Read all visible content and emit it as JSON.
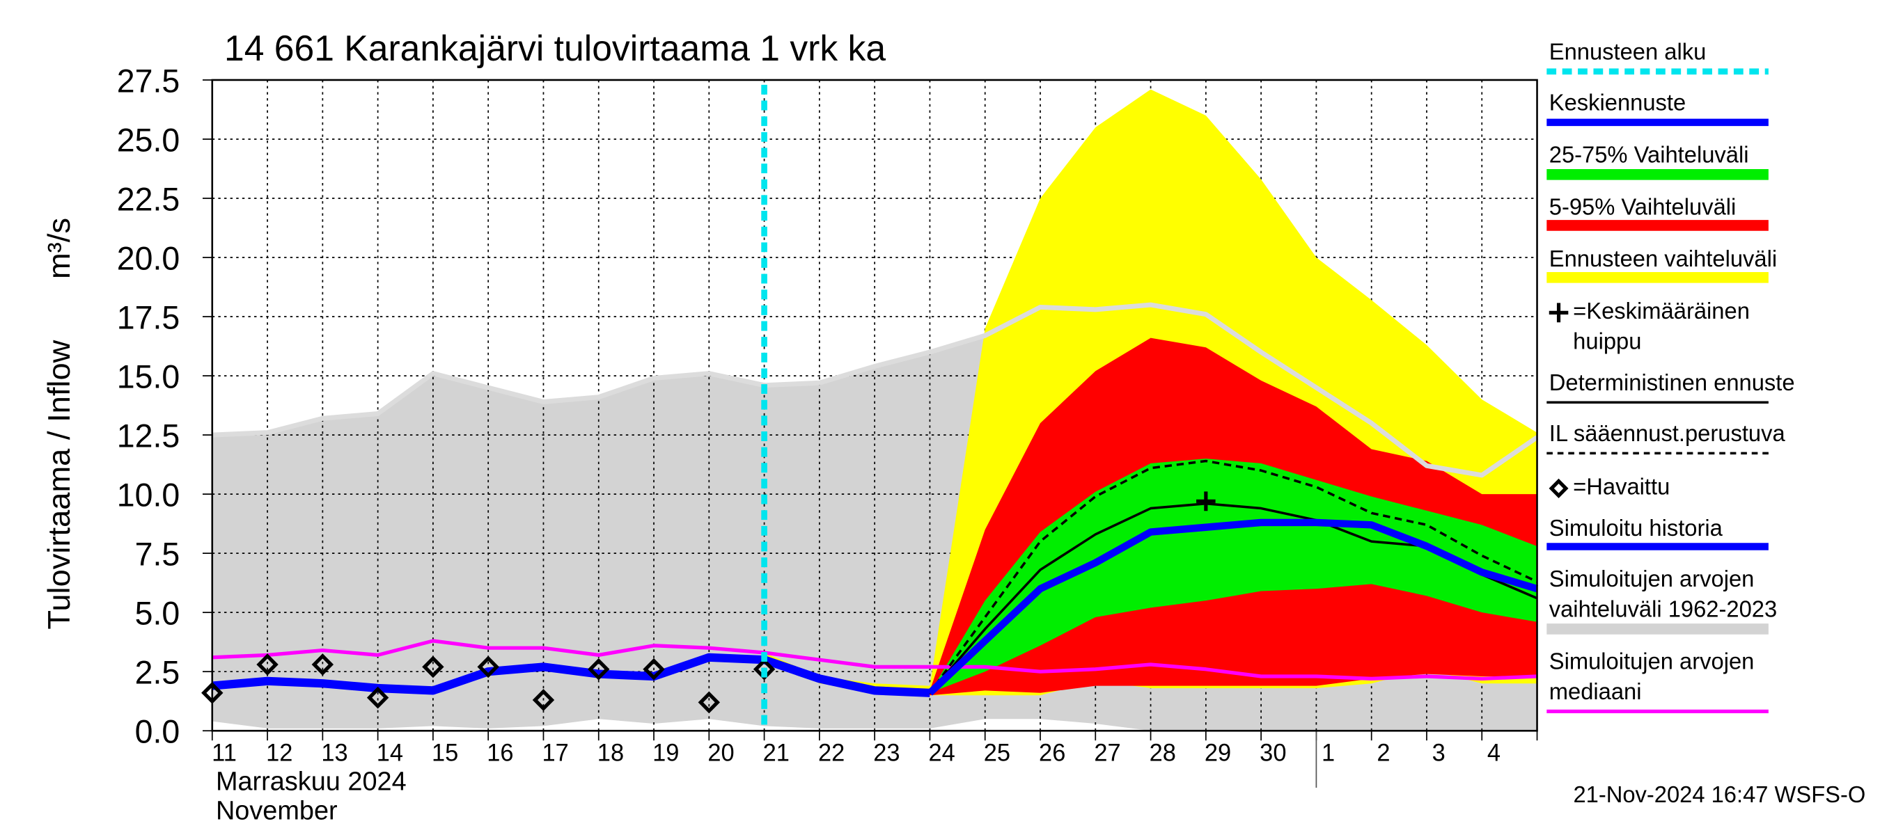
{
  "chart_data": {
    "type": "line",
    "title": "14 661 Karankajärvi tulovirtaama 1 vrk ka",
    "y_label": "Tulovirtaama / Inflow",
    "y_unit": "m³/s",
    "x_label": "Marraskuu 2024",
    "x_label2": "November",
    "footer": "21-Nov-2024 16:47 WSFS-O",
    "grid": true,
    "categories": [
      "11",
      "12",
      "13",
      "14",
      "15",
      "16",
      "17",
      "18",
      "19",
      "20",
      "21",
      "22",
      "23",
      "24",
      "25",
      "26",
      "27",
      "28",
      "29",
      "30",
      "1",
      "2",
      "3",
      "4",
      null
    ],
    "ylim": [
      0,
      27.5
    ],
    "yticks": [
      {
        "value": 0,
        "label": "0.0"
      },
      2.5,
      {
        "value": 5,
        "label": "5.0"
      },
      7.5,
      {
        "value": 10,
        "label": "10.0"
      },
      12.5,
      {
        "value": 15,
        "label": "15.0"
      },
      17.5,
      {
        "value": 20,
        "label": "20.0"
      },
      22.5,
      {
        "value": 25,
        "label": "25.0"
      },
      27.5
    ],
    "layers": [
      {
        "name": "Ennusteen alku",
        "kind": "vline",
        "color": "#00e5ee",
        "x": 10
      },
      {
        "name": "Keskiennuste",
        "kind": "line",
        "color": "#0000ff",
        "width": 6,
        "values": [
          null,
          null,
          null,
          null,
          null,
          null,
          null,
          null,
          null,
          null,
          null,
          null,
          null,
          1.6,
          3.8,
          6.0,
          7.1,
          8.4,
          8.6,
          8.8,
          8.8,
          8.7,
          7.8,
          6.7,
          6.0
        ]
      },
      {
        "name": "25-75% Vaihteluväli",
        "kind": "band",
        "color": "#00ee00",
        "low": [
          null,
          null,
          null,
          null,
          null,
          null,
          null,
          null,
          null,
          null,
          null,
          null,
          null,
          1.6,
          2.5,
          3.6,
          4.8,
          5.2,
          5.5,
          5.9,
          6.0,
          6.2,
          5.7,
          5.0,
          4.6
        ],
        "high": [
          null,
          null,
          null,
          null,
          null,
          null,
          null,
          null,
          null,
          null,
          null,
          null,
          null,
          1.6,
          5.5,
          8.4,
          10.1,
          11.3,
          11.5,
          11.3,
          10.6,
          9.9,
          9.3,
          8.7,
          7.8
        ]
      },
      {
        "name": "5-95% Vaihteluväli",
        "kind": "band",
        "color": "#ff0000",
        "low": [
          null,
          null,
          null,
          null,
          null,
          null,
          null,
          null,
          null,
          null,
          null,
          null,
          null,
          1.5,
          1.7,
          1.6,
          1.9,
          1.9,
          1.9,
          1.9,
          1.9,
          2.2,
          2.4,
          2.3,
          2.3
        ],
        "high": [
          null,
          null,
          null,
          null,
          null,
          null,
          null,
          null,
          null,
          null,
          null,
          null,
          null,
          1.7,
          8.5,
          13.0,
          15.2,
          16.6,
          16.2,
          14.8,
          13.7,
          11.9,
          11.4,
          10.0,
          10.0
        ]
      },
      {
        "name": "Ennusteen vaihteluväli",
        "kind": "band",
        "color": "#ffff00",
        "low": [
          null,
          null,
          null,
          null,
          null,
          null,
          null,
          null,
          null,
          null,
          3.2,
          2.0,
          1.7,
          1.5,
          1.5,
          1.5,
          2.1,
          1.8,
          1.8,
          1.8,
          1.8,
          2.0,
          2.6,
          2.0,
          2.0
        ],
        "high": [
          null,
          null,
          null,
          null,
          null,
          null,
          null,
          null,
          null,
          null,
          3.3,
          2.3,
          2.0,
          1.9,
          17.0,
          22.5,
          25.5,
          27.1,
          26.0,
          23.3,
          20.0,
          18.2,
          16.3,
          14.0,
          12.6
        ]
      },
      {
        "name": "=Keskimääräinen huippu",
        "kind": "peak",
        "color": "#000000",
        "x": 18,
        "value": 9.7
      },
      {
        "name": "Deterministinen ennuste",
        "kind": "line",
        "color": "#000000",
        "width": 2,
        "values": [
          null,
          null,
          null,
          null,
          null,
          null,
          null,
          null,
          null,
          null,
          3.1,
          2.1,
          1.7,
          1.6,
          4.3,
          6.8,
          8.3,
          9.4,
          9.6,
          9.4,
          8.9,
          8.0,
          7.8,
          6.6,
          5.6
        ]
      },
      {
        "name": "IL sääennust.perustuva",
        "kind": "line",
        "color": "#000000",
        "width": 2,
        "dashed": true,
        "values": [
          null,
          null,
          null,
          null,
          null,
          null,
          null,
          null,
          null,
          null,
          3.1,
          2.2,
          1.8,
          1.6,
          4.8,
          8.0,
          9.9,
          11.1,
          11.4,
          11.0,
          10.3,
          9.2,
          8.7,
          7.4,
          6.3
        ]
      },
      {
        "name": "=Havaittu",
        "kind": "marker",
        "color": "#000000",
        "values": [
          1.6,
          2.8,
          2.8,
          1.4,
          2.7,
          2.7,
          1.3,
          2.6,
          2.6,
          1.2,
          2.6,
          null,
          null,
          null,
          null,
          null,
          null,
          null,
          null,
          null,
          null,
          null,
          null,
          null,
          null
        ]
      },
      {
        "name": "Simuloitu historia",
        "kind": "line",
        "color": "#0000ff",
        "width": 7,
        "values": [
          1.9,
          2.1,
          2.0,
          1.8,
          1.7,
          2.5,
          2.7,
          2.4,
          2.3,
          3.1,
          3.0,
          2.2,
          1.7,
          1.6,
          null,
          null,
          null,
          null,
          null,
          null,
          null,
          null,
          null,
          null,
          null
        ]
      },
      {
        "name": "Simuloitujen arvojen vaihteluväli 1962-2023",
        "kind": "band",
        "color": "#d3d3d3",
        "line_color": "#dcdcdc",
        "low": [
          0.4,
          0.1,
          0.1,
          0.1,
          0.2,
          0.1,
          0.2,
          0.5,
          0.3,
          0.5,
          0.2,
          0.1,
          0.1,
          0.1,
          0.5,
          0.5,
          0.3,
          0.0,
          0.0,
          0.0,
          0.0,
          0.0,
          0.0,
          0.0,
          0.0
        ],
        "high": [
          12.5,
          12.6,
          13.2,
          13.4,
          15.1,
          14.5,
          13.9,
          14.1,
          14.9,
          15.1,
          14.6,
          14.7,
          15.4,
          16.0,
          16.7,
          17.9,
          17.8,
          18.0,
          17.6,
          16.0,
          14.5,
          13.0,
          11.2,
          10.8,
          12.4
        ]
      },
      {
        "name": "Simuloitujen arvojen mediaani",
        "kind": "line",
        "color": "#ff00ff",
        "width": 3,
        "values": [
          3.1,
          3.2,
          3.4,
          3.2,
          3.8,
          3.5,
          3.5,
          3.2,
          3.6,
          3.5,
          3.3,
          3.0,
          2.7,
          2.7,
          2.7,
          2.5,
          2.6,
          2.8,
          2.6,
          2.3,
          2.3,
          2.2,
          2.3,
          2.2,
          2.3
        ]
      }
    ]
  }
}
